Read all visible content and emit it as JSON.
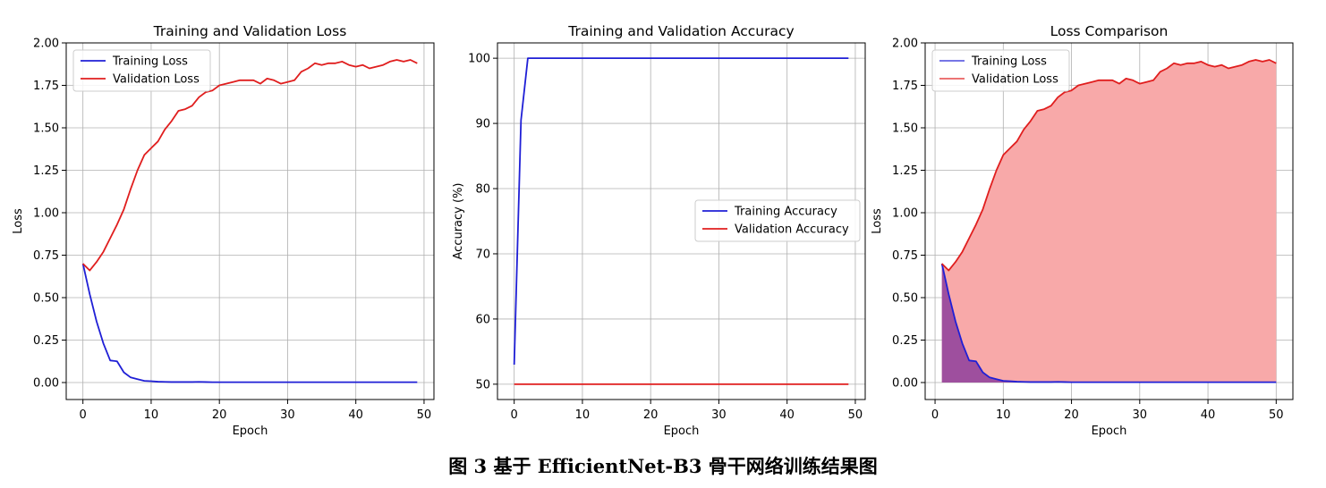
{
  "caption": "图 3 基于 EfficientNet-B3 骨干网络训练结果图",
  "colors": {
    "training": "#1f1fd6",
    "validation": "#e01e1e",
    "grid": "#b0b0b0",
    "fill_val": "#f8a9a9",
    "fill_train": "#8e3f9c"
  },
  "chart_data": [
    {
      "type": "line",
      "title": "Training and Validation Loss",
      "xlabel": "Epoch",
      "ylabel": "Loss",
      "xlim": [
        -2.45,
        51.45
      ],
      "ylim": [
        -0.1,
        2.0
      ],
      "xticks": [
        0,
        10,
        20,
        30,
        40,
        50
      ],
      "xtick_labels": [
        "0",
        "10",
        "20",
        "30",
        "40",
        "50"
      ],
      "yticks": [
        0,
        0.25,
        0.5,
        0.75,
        1.0,
        1.25,
        1.5,
        1.75,
        2.0
      ],
      "ytick_labels": [
        "0.00",
        "0.25",
        "0.50",
        "0.75",
        "1.00",
        "1.25",
        "1.50",
        "1.75",
        "2.00"
      ],
      "grid": true,
      "legend": "top-left",
      "x_start": 0,
      "series": [
        {
          "name": "Training Loss",
          "color": "#1f1fd6",
          "values": [
            0.7,
            0.52,
            0.36,
            0.23,
            0.13,
            0.125,
            0.06,
            0.03,
            0.02,
            0.01,
            0.008,
            0.005,
            0.004,
            0.003,
            0.003,
            0.003,
            0.003,
            0.004,
            0.003,
            0.002,
            0.002,
            0.002,
            0.002,
            0.002,
            0.002,
            0.002,
            0.002,
            0.002,
            0.002,
            0.002,
            0.002,
            0.002,
            0.002,
            0.002,
            0.002,
            0.002,
            0.002,
            0.002,
            0.002,
            0.002,
            0.002,
            0.002,
            0.002,
            0.002,
            0.002,
            0.002,
            0.002,
            0.002,
            0.002,
            0.002
          ]
        },
        {
          "name": "Validation Loss",
          "color": "#e01e1e",
          "values": [
            0.7,
            0.66,
            0.71,
            0.77,
            0.85,
            0.93,
            1.02,
            1.14,
            1.25,
            1.34,
            1.38,
            1.42,
            1.49,
            1.54,
            1.6,
            1.61,
            1.63,
            1.68,
            1.71,
            1.72,
            1.75,
            1.76,
            1.77,
            1.78,
            1.78,
            1.78,
            1.76,
            1.79,
            1.78,
            1.76,
            1.77,
            1.78,
            1.83,
            1.85,
            1.88,
            1.87,
            1.88,
            1.88,
            1.89,
            1.87,
            1.86,
            1.87,
            1.85,
            1.86,
            1.87,
            1.89,
            1.9,
            1.89,
            1.9,
            1.88
          ]
        }
      ]
    },
    {
      "type": "line",
      "title": "Training and Validation Accuracy",
      "xlabel": "Epoch",
      "ylabel": "Accuracy (%)",
      "xlim": [
        -2.45,
        51.45
      ],
      "ylim": [
        47.65,
        102.35
      ],
      "xticks": [
        0,
        10,
        20,
        30,
        40,
        50
      ],
      "xtick_labels": [
        "0",
        "10",
        "20",
        "30",
        "40",
        "50"
      ],
      "yticks": [
        50,
        60,
        70,
        80,
        90,
        100
      ],
      "ytick_labels": [
        "50",
        "60",
        "70",
        "80",
        "90",
        "100"
      ],
      "grid": true,
      "legend": "center-right",
      "x_start": 0,
      "series": [
        {
          "name": "Training Accuracy",
          "color": "#1f1fd6",
          "values": [
            53,
            90.5,
            100,
            100,
            100,
            100,
            100,
            100,
            100,
            100,
            100,
            100,
            100,
            100,
            100,
            100,
            100,
            100,
            100,
            100,
            100,
            100,
            100,
            100,
            100,
            100,
            100,
            100,
            100,
            100,
            100,
            100,
            100,
            100,
            100,
            100,
            100,
            100,
            100,
            100,
            100,
            100,
            100,
            100,
            100,
            100,
            100,
            100,
            100,
            100
          ]
        },
        {
          "name": "Validation Accuracy",
          "color": "#e01e1e",
          "values": [
            50,
            50,
            50,
            50,
            50,
            50,
            50,
            50,
            50,
            50,
            50,
            50,
            50,
            50,
            50,
            50,
            50,
            50,
            50,
            50,
            50,
            50,
            50,
            50,
            50,
            50,
            50,
            50,
            50,
            50,
            50,
            50,
            50,
            50,
            50,
            50,
            50,
            50,
            50,
            50,
            50,
            50,
            50,
            50,
            50,
            50,
            50,
            50,
            50,
            50
          ]
        }
      ]
    },
    {
      "type": "area",
      "title": "Loss Comparison",
      "xlabel": "Epoch",
      "ylabel": "Loss",
      "xlim": [
        -1.45,
        52.45
      ],
      "ylim": [
        -0.1,
        2.0
      ],
      "xticks": [
        0,
        10,
        20,
        30,
        40,
        50
      ],
      "xtick_labels": [
        "0",
        "10",
        "20",
        "30",
        "40",
        "50"
      ],
      "yticks": [
        0,
        0.25,
        0.5,
        0.75,
        1.0,
        1.25,
        1.5,
        1.75,
        2.0
      ],
      "ytick_labels": [
        "0.00",
        "0.25",
        "0.50",
        "0.75",
        "1.00",
        "1.25",
        "1.50",
        "1.75",
        "2.00"
      ],
      "grid": true,
      "legend": "top-left",
      "x_start": 1,
      "series": [
        {
          "name": "Training Loss",
          "color": "#1f1fd6",
          "values": [
            0.7,
            0.52,
            0.36,
            0.23,
            0.13,
            0.125,
            0.06,
            0.03,
            0.02,
            0.01,
            0.008,
            0.005,
            0.004,
            0.003,
            0.003,
            0.003,
            0.003,
            0.004,
            0.003,
            0.002,
            0.002,
            0.002,
            0.002,
            0.002,
            0.002,
            0.002,
            0.002,
            0.002,
            0.002,
            0.002,
            0.002,
            0.002,
            0.002,
            0.002,
            0.002,
            0.002,
            0.002,
            0.002,
            0.002,
            0.002,
            0.002,
            0.002,
            0.002,
            0.002,
            0.002,
            0.002,
            0.002,
            0.002,
            0.002,
            0.002
          ]
        },
        {
          "name": "Validation Loss",
          "color": "#e01e1e",
          "values": [
            0.7,
            0.66,
            0.71,
            0.77,
            0.85,
            0.93,
            1.02,
            1.14,
            1.25,
            1.34,
            1.38,
            1.42,
            1.49,
            1.54,
            1.6,
            1.61,
            1.63,
            1.68,
            1.71,
            1.72,
            1.75,
            1.76,
            1.77,
            1.78,
            1.78,
            1.78,
            1.76,
            1.79,
            1.78,
            1.76,
            1.77,
            1.78,
            1.83,
            1.85,
            1.88,
            1.87,
            1.88,
            1.88,
            1.89,
            1.87,
            1.86,
            1.87,
            1.85,
            1.86,
            1.87,
            1.89,
            1.9,
            1.89,
            1.9,
            1.88
          ]
        }
      ]
    }
  ]
}
